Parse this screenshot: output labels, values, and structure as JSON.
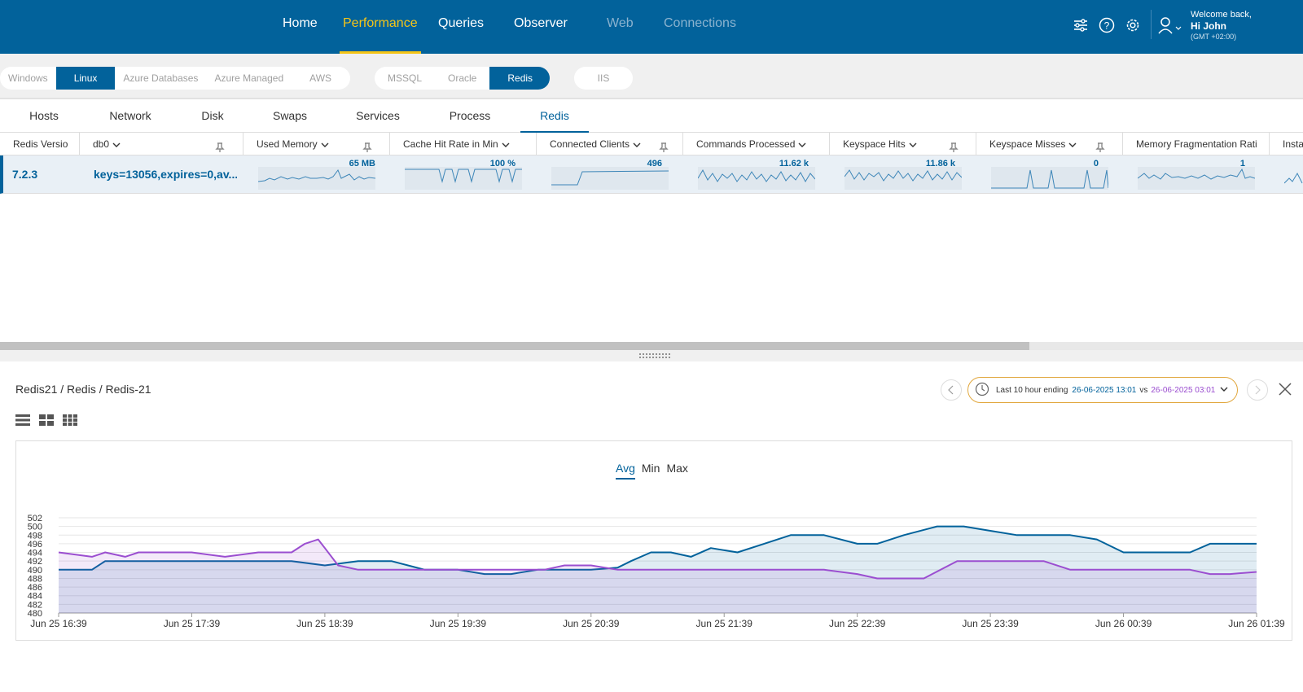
{
  "header": {
    "nav": [
      {
        "label": "Home",
        "state": "normal"
      },
      {
        "label": "Performance",
        "state": "active"
      },
      {
        "label": "Queries",
        "state": "normal"
      },
      {
        "label": "Observer",
        "state": "normal"
      },
      {
        "label": "Web",
        "state": "dim"
      },
      {
        "label": "Connections",
        "state": "dim"
      }
    ],
    "welcome": "Welcome back,",
    "user": "Hi John",
    "timezone": "(GMT +02:00)",
    "icons": [
      "sliders-icon",
      "help-icon",
      "gear-icon",
      "user-icon"
    ],
    "brand_color": "#02629b",
    "accent_color": "#f5c518"
  },
  "platforms": {
    "group1": [
      {
        "label": "Windows"
      },
      {
        "label": "Linux",
        "active": true
      },
      {
        "label": "Azure Databases"
      },
      {
        "label": "Azure Managed"
      },
      {
        "label": "AWS"
      }
    ],
    "group2": [
      {
        "label": "MSSQL"
      },
      {
        "label": "Oracle"
      },
      {
        "label": "Redis",
        "active": true
      }
    ],
    "group3": [
      {
        "label": "IIS"
      }
    ]
  },
  "tabs": [
    {
      "label": "Hosts"
    },
    {
      "label": "Network"
    },
    {
      "label": "Disk"
    },
    {
      "label": "Swaps"
    },
    {
      "label": "Services"
    },
    {
      "label": "Process"
    },
    {
      "label": "Redis",
      "active": true
    }
  ],
  "grid": {
    "columns": [
      "Redis Versio",
      "db0",
      "Used Memory",
      "Cache Hit Rate in Min",
      "Connected Clients",
      "Commands Processed",
      "Keyspace Hits",
      "Keyspace Misses",
      "Memory Fragmentation Rati",
      "Insta"
    ],
    "row": {
      "version": "7.2.3",
      "db0": "keys=13056,expires=0,av...",
      "used_memory": "65 MB",
      "cache_hit_rate": "100 %",
      "connected_clients": "496",
      "commands_processed": "11.62 k",
      "keyspace_hits": "11.86 k",
      "keyspace_misses": "0",
      "mem_frag_ratio": "1"
    }
  },
  "detail": {
    "breadcrumb": "Redis21 / Redis / Redis-21",
    "time_prefix": "Last 10 hour ending",
    "time_current": "26-06-2025 13:01",
    "time_vs": "vs",
    "time_compare": "26-06-2025 03:01",
    "modes": [
      {
        "label": "Avg",
        "active": true
      },
      {
        "label": "Min"
      },
      {
        "label": "Max"
      }
    ]
  },
  "chart_data": {
    "type": "area",
    "title": "",
    "xlabel": "",
    "ylabel": "",
    "ylim": [
      480,
      502
    ],
    "yticks": [
      480,
      482,
      484,
      486,
      488,
      490,
      492,
      494,
      496,
      498,
      500,
      502
    ],
    "x_labels": [
      "Jun 25 16:39",
      "Jun 25 17:39",
      "Jun 25 18:39",
      "Jun 25 19:39",
      "Jun 25 20:39",
      "Jun 25 21:39",
      "Jun 25 22:39",
      "Jun 25 23:39",
      "Jun 26 00:39",
      "Jun 26 01:39"
    ],
    "grid": true,
    "series": [
      {
        "color": "#02629b",
        "fill": "rgba(2,98,155,0.12)",
        "x": [
          0,
          0.15,
          0.25,
          0.35,
          0.5,
          0.6,
          0.75,
          1.0,
          1.25,
          1.5,
          1.75,
          2.0,
          2.25,
          2.5,
          2.75,
          3.0,
          3.2,
          3.4,
          3.6,
          3.8,
          4.0,
          4.2,
          4.3,
          4.45,
          4.6,
          4.75,
          4.9,
          5.1,
          5.3,
          5.5,
          5.75,
          6.0,
          6.15,
          6.35,
          6.6,
          6.8,
          7.0,
          7.2,
          7.4,
          7.6,
          7.8,
          8.0,
          8.15,
          8.3,
          8.5,
          8.65,
          8.8,
          9.0
        ],
        "y": [
          490,
          490,
          490,
          492,
          492,
          492,
          492,
          492,
          492,
          492,
          492,
          491,
          492,
          492,
          490,
          490,
          489,
          489,
          490,
          490,
          490,
          490.5,
          492,
          494,
          494,
          493,
          495,
          494,
          496,
          498,
          498,
          496,
          496,
          498,
          500,
          500,
          499,
          498,
          498,
          498,
          497,
          494,
          494,
          494,
          494,
          496,
          496,
          496
        ]
      },
      {
        "color": "#9b4ed0",
        "fill": "rgba(155,78,208,0.12)",
        "x": [
          0,
          0.25,
          0.35,
          0.5,
          0.6,
          0.75,
          1.0,
          1.25,
          1.5,
          1.75,
          1.85,
          1.95,
          2.0,
          2.1,
          2.25,
          2.5,
          2.75,
          3.0,
          3.25,
          3.5,
          3.65,
          3.8,
          4.0,
          4.2,
          4.5,
          4.75,
          5.0,
          5.25,
          5.5,
          5.75,
          6.0,
          6.15,
          6.3,
          6.5,
          6.75,
          7.0,
          7.2,
          7.4,
          7.6,
          7.8,
          8.0,
          8.25,
          8.4,
          8.5,
          8.65,
          8.8,
          9.0
        ],
        "y": [
          494,
          493,
          494,
          493,
          494,
          494,
          494,
          493,
          494,
          494,
          496,
          497,
          495,
          491,
          490,
          490,
          490,
          490,
          490,
          490,
          490,
          491,
          491,
          490,
          490,
          490,
          490,
          490,
          490,
          490,
          489,
          488,
          488,
          488,
          492,
          492,
          492,
          492,
          490,
          490,
          490,
          490,
          490,
          490,
          489,
          489,
          489.5
        ]
      }
    ]
  }
}
